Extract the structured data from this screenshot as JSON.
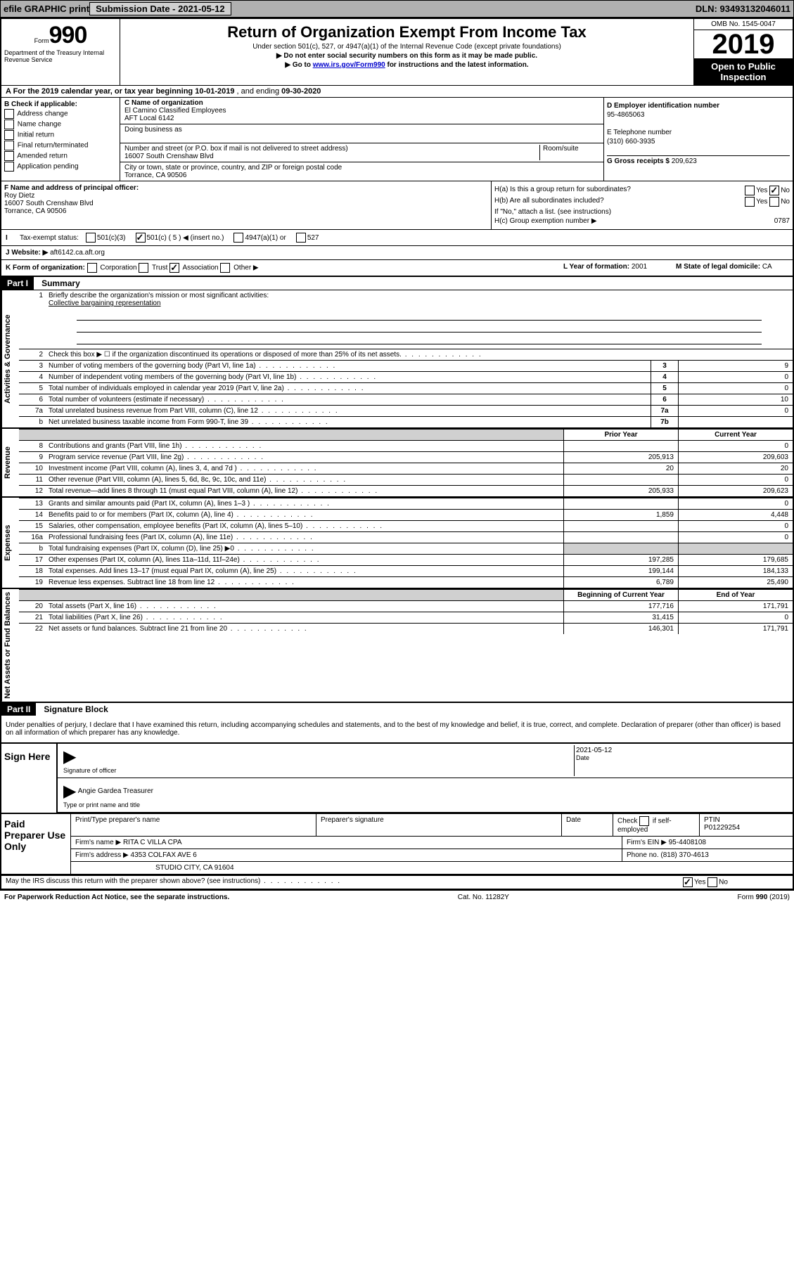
{
  "topbar": {
    "efile": "efile GRAPHIC print",
    "btn": "Submission Date - 2021-05-12",
    "dln": "DLN: 93493132046011"
  },
  "header": {
    "form_label": "Form",
    "form_no": "990",
    "dept": "Department of the Treasury Internal Revenue Service",
    "title": "Return of Organization Exempt From Income Tax",
    "sub1": "Under section 501(c), 527, or 4947(a)(1) of the Internal Revenue Code (except private foundations)",
    "sub2": "▶ Do not enter social security numbers on this form as it may be made public.",
    "sub3_pre": "▶ Go to ",
    "sub3_link": "www.irs.gov/Form990",
    "sub3_post": " for instructions and the latest information.",
    "omb": "OMB No. 1545-0047",
    "year": "2019",
    "open": "Open to Public Inspection"
  },
  "lineA": {
    "pre": "A For the 2019 calendar year, or tax year beginning ",
    "start": "10-01-2019",
    "mid": " , and ending ",
    "end": "09-30-2020"
  },
  "B": {
    "label": "B Check if applicable:",
    "items": [
      "Address change",
      "Name change",
      "Initial return",
      "Final return/terminated",
      "Amended return",
      "Application pending"
    ]
  },
  "C": {
    "name_label": "C Name of organization",
    "name": "El Camino Classified Employees",
    "name2": "AFT Local 6142",
    "dba_label": "Doing business as",
    "dba": "",
    "addr_label": "Number and street (or P.O. box if mail is not delivered to street address)",
    "room": "Room/suite",
    "addr": "16007 South Crenshaw Blvd",
    "city_label": "City or town, state or province, country, and ZIP or foreign postal code",
    "city": "Torrance, CA  90506"
  },
  "D": {
    "label": "D Employer identification number",
    "ein": "95-4865063",
    "E_label": "E Telephone number",
    "phone": "(310) 660-3935",
    "G_label": "G Gross receipts $ ",
    "gross": "209,623"
  },
  "F": {
    "label": "F Name and address of principal officer:",
    "name": "Roy Dietz",
    "addr1": "16007 South Crenshaw Blvd",
    "addr2": "Torrance, CA  90506"
  },
  "H": {
    "a": "H(a)  Is this a group return for subordinates?",
    "a_yes": "Yes",
    "a_no": "No",
    "b": "H(b)  Are all subordinates included?",
    "b_yes": "Yes",
    "b_no": "No",
    "b_note": "If \"No,\" attach a list. (see instructions)",
    "c": "H(c)  Group exemption number ▶",
    "c_val": "0787"
  },
  "I": {
    "label": "Tax-exempt status:",
    "opts": [
      "501(c)(3)",
      "501(c) ( 5 ) ◀ (insert no.)",
      "4947(a)(1) or",
      "527"
    ]
  },
  "J": {
    "label": "J Website: ▶",
    "val": "aft6142.ca.aft.org"
  },
  "K": {
    "label": "K Form of organization:",
    "opts": [
      "Corporation",
      "Trust",
      "Association",
      "Other ▶"
    ],
    "L": "L Year of formation: ",
    "L_val": "2001",
    "M": "M State of legal domicile: ",
    "M_val": "CA"
  },
  "part1": {
    "header": "Part I",
    "title": "Summary"
  },
  "summary": {
    "sections": [
      {
        "label": "Activities & Governance",
        "rows": [
          {
            "n": "1",
            "d": "Briefly describe the organization's mission or most significant activities:",
            "mission": "Collective bargaining representation"
          },
          {
            "n": "2",
            "d": "Check this box ▶ ☐  if the organization discontinued its operations or disposed of more than 25% of its net assets."
          },
          {
            "n": "3",
            "d": "Number of voting members of the governing body (Part VI, line 1a)",
            "nc": "3",
            "v2": "9"
          },
          {
            "n": "4",
            "d": "Number of independent voting members of the governing body (Part VI, line 1b)",
            "nc": "4",
            "v2": "0"
          },
          {
            "n": "5",
            "d": "Total number of individuals employed in calendar year 2019 (Part V, line 2a)",
            "nc": "5",
            "v2": "0"
          },
          {
            "n": "6",
            "d": "Total number of volunteers (estimate if necessary)",
            "nc": "6",
            "v2": "10"
          },
          {
            "n": "7a",
            "d": "Total unrelated business revenue from Part VIII, column (C), line 12",
            "nc": "7a",
            "v2": "0"
          },
          {
            "n": "b",
            "d": "Net unrelated business taxable income from Form 990-T, line 39",
            "nc": "7b",
            "v2": ""
          }
        ]
      },
      {
        "label": "Revenue",
        "header": {
          "c1": "Prior Year",
          "c2": "Current Year"
        },
        "rows": [
          {
            "n": "8",
            "d": "Contributions and grants (Part VIII, line 1h)",
            "v1": "",
            "v2": "0"
          },
          {
            "n": "9",
            "d": "Program service revenue (Part VIII, line 2g)",
            "v1": "205,913",
            "v2": "209,603"
          },
          {
            "n": "10",
            "d": "Investment income (Part VIII, column (A), lines 3, 4, and 7d )",
            "v1": "20",
            "v2": "20"
          },
          {
            "n": "11",
            "d": "Other revenue (Part VIII, column (A), lines 5, 6d, 8c, 9c, 10c, and 11e)",
            "v1": "",
            "v2": "0"
          },
          {
            "n": "12",
            "d": "Total revenue—add lines 8 through 11 (must equal Part VIII, column (A), line 12)",
            "v1": "205,933",
            "v2": "209,623"
          }
        ]
      },
      {
        "label": "Expenses",
        "rows": [
          {
            "n": "13",
            "d": "Grants and similar amounts paid (Part IX, column (A), lines 1–3 )",
            "v1": "",
            "v2": "0"
          },
          {
            "n": "14",
            "d": "Benefits paid to or for members (Part IX, column (A), line 4)",
            "v1": "1,859",
            "v2": "4,448"
          },
          {
            "n": "15",
            "d": "Salaries, other compensation, employee benefits (Part IX, column (A), lines 5–10)",
            "v1": "",
            "v2": "0"
          },
          {
            "n": "16a",
            "d": "Professional fundraising fees (Part IX, column (A), line 11e)",
            "v1": "",
            "v2": "0"
          },
          {
            "n": "b",
            "d": "Total fundraising expenses (Part IX, column (D), line 25) ▶0",
            "v1gray": true,
            "v2gray": true
          },
          {
            "n": "17",
            "d": "Other expenses (Part IX, column (A), lines 11a–11d, 11f–24e)",
            "v1": "197,285",
            "v2": "179,685"
          },
          {
            "n": "18",
            "d": "Total expenses. Add lines 13–17 (must equal Part IX, column (A), line 25)",
            "v1": "199,144",
            "v2": "184,133"
          },
          {
            "n": "19",
            "d": "Revenue less expenses. Subtract line 18 from line 12",
            "v1": "6,789",
            "v2": "25,490"
          }
        ]
      },
      {
        "label": "Net Assets or Fund Balances",
        "header": {
          "c1": "Beginning of Current Year",
          "c2": "End of Year"
        },
        "rows": [
          {
            "n": "20",
            "d": "Total assets (Part X, line 16)",
            "v1": "177,716",
            "v2": "171,791"
          },
          {
            "n": "21",
            "d": "Total liabilities (Part X, line 26)",
            "v1": "31,415",
            "v2": "0"
          },
          {
            "n": "22",
            "d": "Net assets or fund balances. Subtract line 21 from line 20",
            "v1": "146,301",
            "v2": "171,791"
          }
        ]
      }
    ]
  },
  "part2": {
    "header": "Part II",
    "title": "Signature Block",
    "decl": "Under penalties of perjury, I declare that I have examined this return, including accompanying schedules and statements, and to the best of my knowledge and belief, it is true, correct, and complete. Declaration of preparer (other than officer) is based on all information of which preparer has any knowledge."
  },
  "sign": {
    "left": "Sign Here",
    "sig_label": "Signature of officer",
    "date": "2021-05-12",
    "date_label": "Date",
    "name": "Angie Gardea  Treasurer",
    "name_label": "Type or print name and title"
  },
  "prep": {
    "left": "Paid Preparer Use Only",
    "h1": "Print/Type preparer's name",
    "h2": "Preparer's signature",
    "h3": "Date",
    "h4_pre": "Check ",
    "h4": " if self-employed",
    "h5": "PTIN",
    "ptin": "P01229254",
    "firm_label": "Firm's name    ▶",
    "firm": "RITA C VILLA CPA",
    "ein_label": "Firm's EIN ▶",
    "ein": "95-4408108",
    "addr_label": "Firm's address ▶",
    "addr1": "4353 COLFAX AVE 6",
    "addr2": "STUDIO CITY, CA  91604",
    "phone_label": "Phone no. ",
    "phone": "(818) 370-4613",
    "discuss": "May the IRS discuss this return with the preparer shown above? (see instructions)",
    "yes": "Yes",
    "no": "No"
  },
  "footer": {
    "left": "For Paperwork Reduction Act Notice, see the separate instructions.",
    "mid": "Cat. No. 11282Y",
    "right": "Form 990 (2019)"
  }
}
